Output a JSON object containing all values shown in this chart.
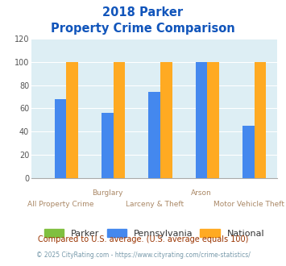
{
  "title_line1": "2018 Parker",
  "title_line2": "Property Crime Comparison",
  "categories": [
    "All Property Crime",
    "Burglary",
    "Larceny & Theft",
    "Arson",
    "Motor Vehicle Theft"
  ],
  "parker": [
    0,
    0,
    0,
    0,
    0
  ],
  "pennsylvania": [
    68,
    56,
    74,
    100,
    45
  ],
  "national": [
    100,
    100,
    100,
    100,
    100
  ],
  "parker_color": "#80c040",
  "pennsylvania_color": "#4488ee",
  "national_color": "#ffaa22",
  "ylim": [
    0,
    120
  ],
  "yticks": [
    0,
    20,
    40,
    60,
    80,
    100,
    120
  ],
  "plot_bg": "#ddeef4",
  "title_color": "#1155bb",
  "footer_text1": "Compared to U.S. average. (U.S. average equals 100)",
  "footer_text2": "© 2025 CityRating.com - https://www.cityrating.com/crime-statistics/",
  "footer_color1": "#993300",
  "footer_color2": "#7799aa",
  "legend_labels": [
    "Parker",
    "Pennsylvania",
    "National"
  ],
  "bar_width": 0.25,
  "upper_labels": [
    1,
    3
  ],
  "lower_labels": [
    0,
    2,
    4
  ],
  "label_upper_row": [
    "",
    "Burglary",
    "",
    "Arson",
    ""
  ],
  "label_lower_row": [
    "All Property Crime",
    "",
    "Larceny & Theft",
    "",
    "Motor Vehicle Theft"
  ]
}
